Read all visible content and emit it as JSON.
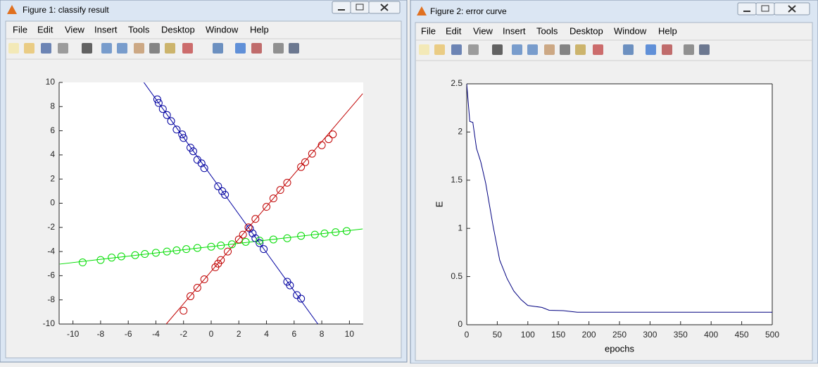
{
  "windows": [
    {
      "title": "Figure 1: classify result",
      "menu": [
        "File",
        "Edit",
        "View",
        "Insert",
        "Tools",
        "Desktop",
        "Window",
        "Help"
      ]
    },
    {
      "title": "Figure 2: error curve",
      "menu": [
        "File",
        "Edit",
        "View",
        "Insert",
        "Tools",
        "Desktop",
        "Window",
        "Help"
      ]
    }
  ],
  "chart_data": [
    {
      "type": "scatter",
      "box": false,
      "xlim": [
        -11,
        11
      ],
      "ylim": [
        -10,
        10
      ],
      "xticks": [
        -10,
        -8,
        -6,
        -4,
        -2,
        0,
        2,
        4,
        6,
        8,
        10
      ],
      "yticks": [
        -10,
        -8,
        -6,
        -4,
        -2,
        0,
        2,
        4,
        6,
        8,
        10
      ],
      "series": [
        {
          "color": "#0000a0",
          "x": [
            -3.9,
            -3.8,
            -3.5,
            -3.2,
            -2.9,
            -2.5,
            -2.1,
            -2.0,
            -1.5,
            -1.3,
            -1.0,
            -0.7,
            -0.5,
            0.5,
            0.8,
            1.0,
            2.8,
            3.0,
            3.2,
            3.5,
            3.8,
            5.5,
            5.7,
            6.2,
            6.5
          ],
          "values": [
            8.6,
            8.3,
            7.8,
            7.3,
            6.8,
            6.1,
            5.7,
            5.4,
            4.6,
            4.3,
            3.6,
            3.3,
            2.9,
            1.4,
            1.0,
            0.7,
            -2.1,
            -2.5,
            -2.9,
            -3.3,
            -3.8,
            -6.5,
            -6.8,
            -7.6,
            -7.9
          ]
        },
        {
          "color": "#c00000",
          "x": [
            -2.0,
            -1.5,
            -1.0,
            -0.5,
            0.3,
            0.5,
            0.7,
            1.2,
            2.0,
            2.3,
            2.7,
            3.2,
            4.0,
            4.5,
            5.0,
            5.5,
            6.5,
            6.8,
            7.3,
            8.0,
            8.5,
            8.8
          ],
          "values": [
            -8.9,
            -7.7,
            -7.0,
            -6.3,
            -5.3,
            -5.0,
            -4.7,
            -4.0,
            -3.0,
            -2.6,
            -2.0,
            -1.3,
            -0.3,
            0.4,
            1.1,
            1.7,
            3.0,
            3.4,
            4.1,
            4.8,
            5.3,
            5.7
          ]
        },
        {
          "color": "#00dd00",
          "x": [
            -9.3,
            -8.0,
            -7.2,
            -6.5,
            -5.5,
            -4.8,
            -4.0,
            -3.2,
            -2.5,
            -1.8,
            -1.0,
            0.0,
            0.7,
            1.5,
            2.5,
            3.5,
            4.5,
            5.5,
            6.5,
            7.5,
            8.2,
            9.0,
            9.8
          ],
          "values": [
            -4.9,
            -4.7,
            -4.5,
            -4.4,
            -4.3,
            -4.2,
            -4.1,
            -4.0,
            -3.9,
            -3.8,
            -3.7,
            -3.6,
            -3.5,
            -3.4,
            -3.2,
            -3.1,
            -3.0,
            -2.9,
            -2.7,
            -2.6,
            -2.5,
            -2.4,
            -2.3
          ]
        }
      ],
      "lines": [
        {
          "color": "#0000a0",
          "x": [
            -4.87,
            7.72
          ],
          "values": [
            10,
            -10
          ]
        },
        {
          "color": "#c00000",
          "x": [
            -3.25,
            10.96
          ],
          "values": [
            -10,
            9.07
          ]
        },
        {
          "color": "#00dd00",
          "x": [
            -10.96,
            10.96
          ],
          "values": [
            -5.04,
            -2.13
          ]
        }
      ]
    },
    {
      "type": "line",
      "box": true,
      "color": "#000080",
      "xlabel": "epochs",
      "ylabel": "E",
      "xlim": [
        0,
        500
      ],
      "ylim": [
        0,
        2.5
      ],
      "xticks": [
        0,
        50,
        100,
        150,
        200,
        250,
        300,
        350,
        400,
        450,
        500
      ],
      "yticks": [
        0,
        0.5,
        1,
        1.5,
        2,
        2.5
      ],
      "x": [
        0,
        5,
        10,
        16,
        23,
        31,
        43,
        54,
        66,
        77,
        89,
        100,
        123,
        135,
        158,
        181,
        300,
        500
      ],
      "values": [
        2.5,
        2.11,
        2.1,
        1.83,
        1.69,
        1.47,
        1.03,
        0.67,
        0.48,
        0.35,
        0.26,
        0.2,
        0.18,
        0.15,
        0.146,
        0.13,
        0.13,
        0.13
      ]
    }
  ]
}
